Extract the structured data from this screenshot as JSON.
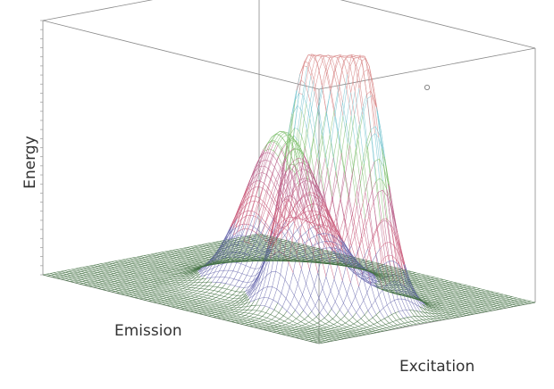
{
  "chart_data": {
    "type": "surface",
    "title": "",
    "xlabel": "Excitation",
    "ylabel": "Emission",
    "zlabel": "Energy",
    "grid": false,
    "legend": "none",
    "peaks": [
      {
        "excitation": 0.8,
        "emission": 0.45,
        "height": 0.99
      },
      {
        "excitation": 0.7,
        "emission": 0.33,
        "height": 0.92
      },
      {
        "excitation": 0.47,
        "emission": 0.49,
        "height": 0.55
      },
      {
        "excitation": 0.5,
        "emission": 0.62,
        "height": 0.12
      }
    ],
    "color_bands": [
      "#3f6f3f",
      "#6f6fb0",
      "#c95a7a",
      "#b8608a",
      "#7fbf6f",
      "#77c4d0",
      "#d68080"
    ]
  },
  "colors": {
    "frame": "#8a8a8a",
    "label": "#333333"
  }
}
